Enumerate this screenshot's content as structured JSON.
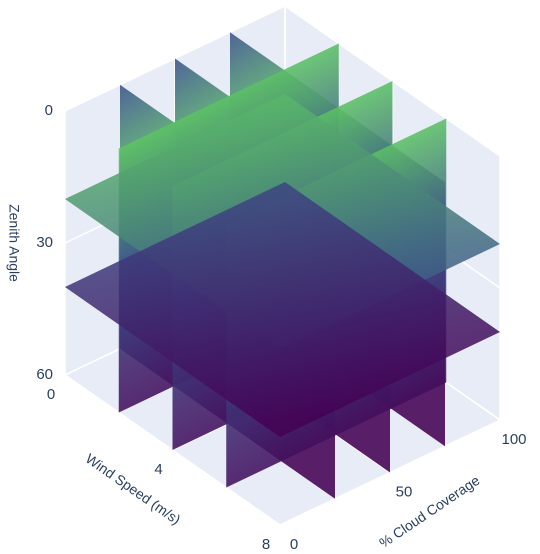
{
  "chart_data": {
    "type": "volume-slices",
    "xaxis_title": "Wind Speed (m/s)",
    "yaxis_title": "% Cloud Coverage",
    "zaxis_title": "Zenith Angle",
    "xlim": [
      0,
      8
    ],
    "xticks": [
      0,
      4,
      8
    ],
    "ylim": [
      0,
      100
    ],
    "yticks": [
      0,
      50,
      100
    ],
    "zlim": [
      0,
      60
    ],
    "zticks": [
      0,
      30,
      60
    ],
    "z_reversed": true,
    "x_slices": [
      2,
      4,
      6
    ],
    "y_slices": [
      25,
      50,
      75
    ],
    "z_slices": [
      20,
      40
    ],
    "colorscale": [
      "#440154",
      "#3b528b",
      "#21918c",
      "#5ec962",
      "#fde725"
    ],
    "grid": true
  }
}
